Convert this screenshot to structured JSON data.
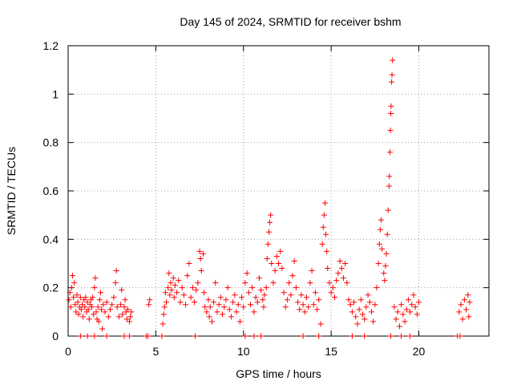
{
  "chart_data": {
    "type": "scatter",
    "title": "Day 145 of 2024, SRMTID for receiver bshm",
    "xlabel": "GPS time / hours",
    "ylabel": "SRMTID / TECUs",
    "xlim": [
      0,
      24
    ],
    "ylim": [
      0,
      1.2
    ],
    "xticks": [
      0,
      5,
      10,
      15,
      20
    ],
    "xtick_labels": [
      "0",
      "5",
      "10",
      "15",
      "20"
    ],
    "yticks": [
      0,
      0.2,
      0.4,
      0.6,
      0.8,
      1.0,
      1.2
    ],
    "ytick_labels": [
      "0",
      "0.2",
      "0.4",
      "0.6",
      "0.8",
      "1",
      "1.2"
    ],
    "grid": true,
    "marker": "+",
    "series": [
      {
        "name": "SRMTID",
        "color": "#ff0000",
        "points": [
          [
            0.05,
            0.15
          ],
          [
            0.1,
            0.18
          ],
          [
            0.15,
            0.12
          ],
          [
            0.2,
            0.2
          ],
          [
            0.25,
            0.25
          ],
          [
            0.3,
            0.16
          ],
          [
            0.35,
            0.22
          ],
          [
            0.4,
            0.13
          ],
          [
            0.45,
            0.1
          ],
          [
            0.5,
            0.17
          ],
          [
            0.55,
            0.14
          ],
          [
            0.6,
            0.09
          ],
          [
            0.65,
            0.12
          ],
          [
            0.7,
            0.16
          ],
          [
            0.75,
            0.11
          ],
          [
            0.8,
            0.13
          ],
          [
            0.85,
            0.08
          ],
          [
            0.9,
            0.15
          ],
          [
            0.95,
            0.12
          ],
          [
            1.0,
            0.16
          ],
          [
            1.05,
            0.1
          ],
          [
            1.1,
            0.14
          ],
          [
            1.15,
            0.11
          ],
          [
            1.2,
            0.07
          ],
          [
            1.25,
            0.13
          ],
          [
            1.3,
            0.15
          ],
          [
            1.35,
            0.12
          ],
          [
            1.4,
            0.16
          ],
          [
            1.45,
            0.09
          ],
          [
            1.5,
            0.2
          ],
          [
            1.55,
            0.24
          ],
          [
            1.6,
            0.1
          ],
          [
            1.65,
            0.07
          ],
          [
            1.7,
            0.12
          ],
          [
            1.75,
            0.06
          ],
          [
            1.8,
            0.15
          ],
          [
            1.85,
            0.18
          ],
          [
            1.9,
            0.11
          ],
          [
            1.95,
            0.03
          ],
          [
            2.0,
            0.13
          ],
          [
            2.1,
            0.1
          ],
          [
            2.2,
            0.14
          ],
          [
            2.3,
            0.08
          ],
          [
            2.4,
            0.11
          ],
          [
            2.5,
            0.13
          ],
          [
            2.6,
            0.16
          ],
          [
            2.7,
            0.22
          ],
          [
            2.75,
            0.27
          ],
          [
            2.8,
            0.12
          ],
          [
            2.9,
            0.08
          ],
          [
            3.0,
            0.13
          ],
          [
            3.05,
            0.19
          ],
          [
            3.1,
            0.09
          ],
          [
            3.2,
            0.12
          ],
          [
            3.25,
            0.15
          ],
          [
            3.3,
            0.1
          ],
          [
            3.35,
            0.07
          ],
          [
            3.4,
            0.11
          ],
          [
            3.5,
            0.06
          ],
          [
            3.55,
            0.08
          ],
          [
            3.6,
            0.1
          ],
          [
            4.6,
            0.13
          ],
          [
            4.65,
            0.15
          ],
          [
            5.4,
            0.05
          ],
          [
            5.45,
            0.09
          ],
          [
            5.5,
            0.12
          ],
          [
            5.55,
            0.18
          ],
          [
            5.6,
            0.14
          ],
          [
            5.7,
            0.2
          ],
          [
            5.75,
            0.26
          ],
          [
            5.8,
            0.17
          ],
          [
            5.85,
            0.22
          ],
          [
            5.9,
            0.19
          ],
          [
            6.0,
            0.24
          ],
          [
            6.05,
            0.16
          ],
          [
            6.1,
            0.21
          ],
          [
            6.2,
            0.18
          ],
          [
            6.3,
            0.23
          ],
          [
            6.4,
            0.14
          ],
          [
            6.5,
            0.2
          ],
          [
            6.6,
            0.17
          ],
          [
            6.7,
            0.13
          ],
          [
            6.8,
            0.25
          ],
          [
            6.9,
            0.3
          ],
          [
            7.0,
            0.16
          ],
          [
            7.1,
            0.2
          ],
          [
            7.2,
            0.14
          ],
          [
            7.3,
            0.19
          ],
          [
            7.4,
            0.22
          ],
          [
            7.5,
            0.35
          ],
          [
            7.55,
            0.32
          ],
          [
            7.6,
            0.27
          ],
          [
            7.7,
            0.34
          ],
          [
            7.75,
            0.18
          ],
          [
            7.8,
            0.12
          ],
          [
            7.9,
            0.1
          ],
          [
            8.0,
            0.15
          ],
          [
            8.05,
            0.08
          ],
          [
            8.1,
            0.12
          ],
          [
            8.2,
            0.06
          ],
          [
            8.3,
            0.14
          ],
          [
            8.4,
            0.22
          ],
          [
            8.5,
            0.1
          ],
          [
            8.6,
            0.13
          ],
          [
            8.7,
            0.16
          ],
          [
            8.8,
            0.09
          ],
          [
            8.9,
            0.12
          ],
          [
            9.0,
            0.15
          ],
          [
            9.1,
            0.2
          ],
          [
            9.2,
            0.11
          ],
          [
            9.3,
            0.08
          ],
          [
            9.4,
            0.14
          ],
          [
            9.5,
            0.17
          ],
          [
            9.6,
            0.1
          ],
          [
            9.7,
            0.13
          ],
          [
            9.8,
            0.06
          ],
          [
            9.9,
            0.16
          ],
          [
            10.0,
            0.12
          ],
          [
            10.1,
            0.22
          ],
          [
            10.2,
            0.26
          ],
          [
            10.3,
            0.18
          ],
          [
            10.4,
            0.13
          ],
          [
            10.5,
            0.2
          ],
          [
            10.6,
            0.1
          ],
          [
            10.7,
            0.16
          ],
          [
            10.8,
            0.14
          ],
          [
            10.9,
            0.24
          ],
          [
            11.0,
            0.19
          ],
          [
            11.1,
            0.15
          ],
          [
            11.15,
            0.12
          ],
          [
            11.2,
            0.17
          ],
          [
            11.3,
            0.2
          ],
          [
            11.35,
            0.32
          ],
          [
            11.4,
            0.38
          ],
          [
            11.45,
            0.43
          ],
          [
            11.5,
            0.47
          ],
          [
            11.55,
            0.5
          ],
          [
            11.6,
            0.3
          ],
          [
            11.7,
            0.22
          ],
          [
            11.8,
            0.27
          ],
          [
            11.9,
            0.33
          ],
          [
            12.0,
            0.3
          ],
          [
            12.1,
            0.35
          ],
          [
            12.2,
            0.28
          ],
          [
            12.3,
            0.18
          ],
          [
            12.4,
            0.12
          ],
          [
            12.5,
            0.15
          ],
          [
            12.6,
            0.22
          ],
          [
            12.7,
            0.17
          ],
          [
            12.8,
            0.25
          ],
          [
            12.9,
            0.31
          ],
          [
            13.0,
            0.2
          ],
          [
            13.1,
            0.14
          ],
          [
            13.2,
            0.11
          ],
          [
            13.3,
            0.17
          ],
          [
            13.4,
            0.13
          ],
          [
            13.5,
            0.1
          ],
          [
            13.6,
            0.16
          ],
          [
            13.7,
            0.12
          ],
          [
            13.8,
            0.22
          ],
          [
            13.9,
            0.27
          ],
          [
            14.0,
            0.13
          ],
          [
            14.1,
            0.18
          ],
          [
            14.2,
            0.11
          ],
          [
            14.3,
            0.15
          ],
          [
            14.4,
            0.05
          ],
          [
            14.5,
            0.38
          ],
          [
            14.55,
            0.45
          ],
          [
            14.6,
            0.5
          ],
          [
            14.65,
            0.55
          ],
          [
            14.7,
            0.42
          ],
          [
            14.75,
            0.35
          ],
          [
            14.8,
            0.28
          ],
          [
            14.9,
            0.22
          ],
          [
            15.0,
            0.18
          ],
          [
            15.1,
            0.2
          ],
          [
            15.2,
            0.16
          ],
          [
            15.3,
            0.23
          ],
          [
            15.4,
            0.26
          ],
          [
            15.5,
            0.31
          ],
          [
            15.6,
            0.28
          ],
          [
            15.7,
            0.24
          ],
          [
            15.8,
            0.3
          ],
          [
            15.9,
            0.22
          ],
          [
            16.0,
            0.15
          ],
          [
            16.1,
            0.13
          ],
          [
            16.2,
            0.1
          ],
          [
            16.3,
            0.14
          ],
          [
            16.4,
            0.08
          ],
          [
            16.5,
            0.05
          ],
          [
            16.6,
            0.11
          ],
          [
            16.7,
            0.15
          ],
          [
            16.8,
            0.09
          ],
          [
            16.9,
            0.07
          ],
          [
            17.0,
            0.12
          ],
          [
            17.1,
            0.17
          ],
          [
            17.2,
            0.14
          ],
          [
            17.3,
            0.1
          ],
          [
            17.4,
            0.06
          ],
          [
            17.5,
            0.13
          ],
          [
            17.6,
            0.2
          ],
          [
            17.7,
            0.3
          ],
          [
            17.75,
            0.38
          ],
          [
            17.8,
            0.44
          ],
          [
            17.85,
            0.48
          ],
          [
            17.9,
            0.36
          ],
          [
            18.0,
            0.26
          ],
          [
            18.05,
            0.23
          ],
          [
            18.1,
            0.29
          ],
          [
            18.15,
            0.34
          ],
          [
            18.2,
            0.42
          ],
          [
            18.25,
            0.52
          ],
          [
            18.3,
            0.62
          ],
          [
            18.32,
            0.66
          ],
          [
            18.35,
            0.76
          ],
          [
            18.38,
            0.85
          ],
          [
            18.4,
            0.92
          ],
          [
            18.42,
            0.95
          ],
          [
            18.45,
            1.05
          ],
          [
            18.47,
            1.08
          ],
          [
            18.5,
            1.14
          ],
          [
            18.6,
            0.12
          ],
          [
            18.7,
            0.07
          ],
          [
            18.8,
            0.1
          ],
          [
            18.9,
            0.04
          ],
          [
            19.0,
            0.13
          ],
          [
            19.1,
            0.09
          ],
          [
            19.2,
            0.06
          ],
          [
            19.3,
            0.11
          ],
          [
            19.4,
            0.15
          ],
          [
            19.5,
            0.1
          ],
          [
            19.6,
            0.13
          ],
          [
            19.7,
            0.17
          ],
          [
            19.8,
            0.12
          ],
          [
            19.9,
            0.09
          ],
          [
            20.0,
            0.14
          ],
          [
            22.3,
            0.1
          ],
          [
            22.4,
            0.13
          ],
          [
            22.5,
            0.07
          ],
          [
            22.6,
            0.15
          ],
          [
            22.7,
            0.11
          ],
          [
            22.8,
            0.17
          ],
          [
            22.85,
            0.08
          ],
          [
            22.9,
            0.14
          ],
          [
            0.7,
            0.0
          ],
          [
            1.1,
            0.0
          ],
          [
            1.5,
            0.0
          ],
          [
            2.2,
            0.0
          ],
          [
            3.2,
            0.0
          ],
          [
            3.5,
            0.0
          ],
          [
            4.45,
            0.0
          ],
          [
            4.55,
            0.0
          ],
          [
            5.35,
            0.0
          ],
          [
            7.25,
            0.0
          ],
          [
            10.1,
            0.0
          ],
          [
            10.6,
            0.0
          ],
          [
            11.0,
            0.0
          ],
          [
            13.4,
            0.0
          ],
          [
            14.3,
            0.0
          ],
          [
            16.2,
            0.0
          ],
          [
            16.9,
            0.0
          ],
          [
            18.4,
            0.0
          ],
          [
            19.0,
            0.0
          ],
          [
            19.5,
            0.0
          ],
          [
            22.2,
            0.0
          ],
          [
            22.35,
            0.0
          ]
        ]
      }
    ]
  }
}
